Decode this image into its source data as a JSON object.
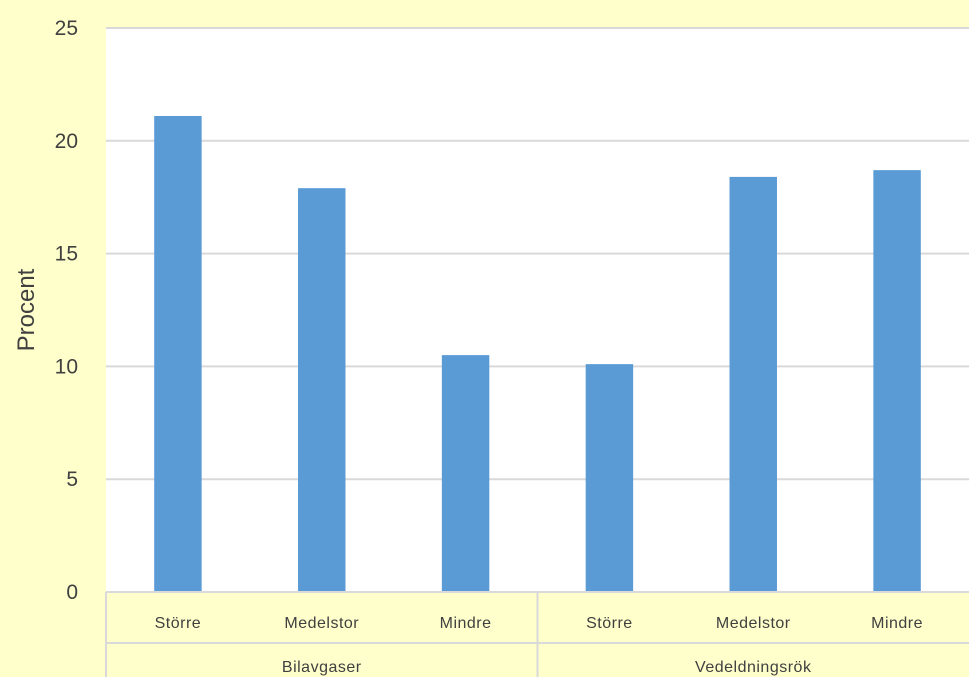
{
  "chart_data": {
    "type": "bar",
    "ylabel": "Procent",
    "xlabel": "",
    "title": "",
    "ylim": [
      0,
      25
    ],
    "yticks": [
      "0",
      "5",
      "10",
      "15",
      "20",
      "25"
    ],
    "grid": true,
    "groups": [
      {
        "name": "Bilavgaser",
        "categories": [
          "Större",
          "Medelstor",
          "Mindre"
        ],
        "values": [
          21.1,
          17.9,
          10.5
        ]
      },
      {
        "name": "Vedeldningsrök",
        "categories": [
          "Större",
          "Medelstor",
          "Mindre"
        ],
        "values": [
          10.1,
          18.4,
          18.7
        ]
      }
    ],
    "colors": {
      "bar": "#5b9bd5",
      "gridline": "#d9d9d9",
      "plot_background": "#ffffff",
      "page_background": "#ffffcc",
      "axis_text": "#404040"
    }
  }
}
